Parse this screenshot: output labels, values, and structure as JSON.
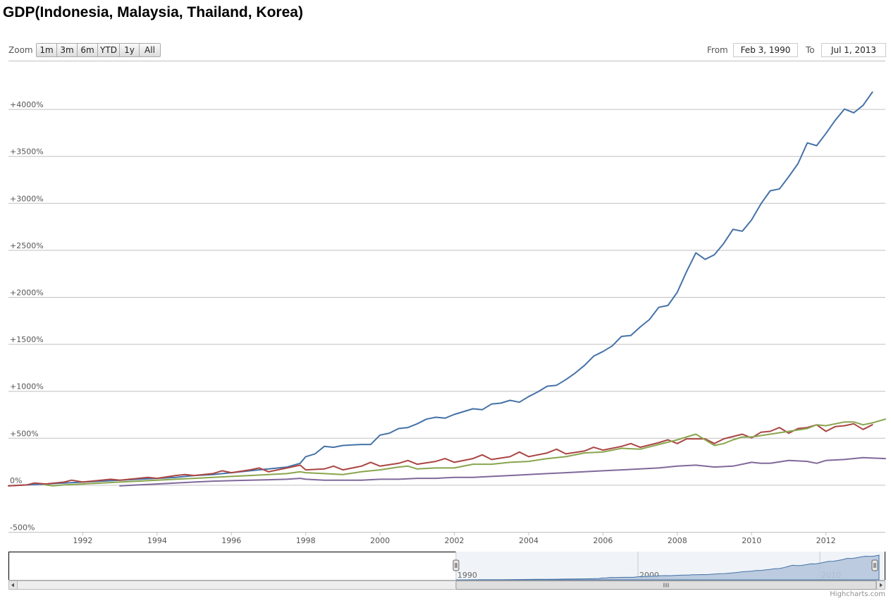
{
  "title": "GDP(Indonesia, Malaysia, Thailand, Korea)",
  "toolbar": {
    "zoom_label": "Zoom",
    "zoom_buttons": [
      "1m",
      "3m",
      "6m",
      "YTD",
      "1y",
      "All"
    ],
    "from_label": "From",
    "from_value": "Feb 3, 1990",
    "to_label": "To",
    "to_value": "Jul 1, 2013"
  },
  "credit": "Highcharts.com",
  "colors": {
    "series1": "#4572A7",
    "series2": "#AA4643",
    "series3": "#89A54E",
    "series4": "#80699B",
    "navigator_fill": "#B6C6DB",
    "grid": "#C0C0C0"
  },
  "chart_data": {
    "type": "line",
    "xlim": [
      1990.0,
      2013.6
    ],
    "ylim": [
      -500,
      4500
    ],
    "y_ticks": [
      -500,
      0,
      500,
      1000,
      1500,
      2000,
      2500,
      3000,
      3500,
      4000
    ],
    "y_tick_labels": [
      "-500%",
      "0%",
      "+500%",
      "+1000%",
      "+1500%",
      "+2000%",
      "+2500%",
      "+3000%",
      "+3500%",
      "+4000%"
    ],
    "x_ticks": [
      1992,
      1994,
      1996,
      1998,
      2000,
      2002,
      2004,
      2006,
      2008,
      2010,
      2012
    ],
    "x_tick_labels": [
      "1992",
      "1994",
      "1996",
      "1998",
      "2000",
      "2002",
      "2004",
      "2006",
      "2008",
      "2010",
      "2012"
    ],
    "grid": true,
    "navigator": {
      "x_ticks": [
        1990,
        2000,
        2010
      ],
      "x_tick_labels": [
        "1990",
        "2000",
        "2010"
      ]
    },
    "series": [
      {
        "points": [
          [
            1990.0,
            -10
          ],
          [
            1990.5,
            0
          ],
          [
            1991.0,
            10
          ],
          [
            1991.5,
            20
          ],
          [
            1992.0,
            30
          ],
          [
            1992.5,
            40
          ],
          [
            1993.0,
            50
          ],
          [
            1993.5,
            60
          ],
          [
            1994.0,
            70
          ],
          [
            1994.5,
            80
          ],
          [
            1995.0,
            100
          ],
          [
            1995.5,
            110
          ],
          [
            1996.0,
            130
          ],
          [
            1996.5,
            150
          ],
          [
            1997.0,
            170
          ],
          [
            1997.5,
            190
          ],
          [
            1997.85,
            230
          ],
          [
            1998.0,
            300
          ],
          [
            1998.25,
            330
          ],
          [
            1998.5,
            410
          ],
          [
            1998.75,
            400
          ],
          [
            1999.0,
            420
          ],
          [
            1999.5,
            430
          ],
          [
            1999.75,
            430
          ],
          [
            2000.0,
            530
          ],
          [
            2000.25,
            550
          ],
          [
            2000.5,
            600
          ],
          [
            2000.75,
            610
          ],
          [
            2001.0,
            650
          ],
          [
            2001.25,
            700
          ],
          [
            2001.5,
            720
          ],
          [
            2001.75,
            710
          ],
          [
            2002.0,
            750
          ],
          [
            2002.5,
            810
          ],
          [
            2002.75,
            800
          ],
          [
            2003.0,
            860
          ],
          [
            2003.25,
            870
          ],
          [
            2003.5,
            900
          ],
          [
            2003.75,
            880
          ],
          [
            2004.0,
            940
          ],
          [
            2004.25,
            990
          ],
          [
            2004.5,
            1050
          ],
          [
            2004.75,
            1060
          ],
          [
            2005.0,
            1120
          ],
          [
            2005.25,
            1190
          ],
          [
            2005.5,
            1270
          ],
          [
            2005.75,
            1370
          ],
          [
            2006.0,
            1420
          ],
          [
            2006.25,
            1480
          ],
          [
            2006.5,
            1580
          ],
          [
            2006.75,
            1590
          ],
          [
            2007.0,
            1680
          ],
          [
            2007.25,
            1760
          ],
          [
            2007.5,
            1890
          ],
          [
            2007.75,
            1910
          ],
          [
            2008.0,
            2050
          ],
          [
            2008.25,
            2270
          ],
          [
            2008.5,
            2470
          ],
          [
            2008.75,
            2400
          ],
          [
            2009.0,
            2450
          ],
          [
            2009.25,
            2570
          ],
          [
            2009.5,
            2720
          ],
          [
            2009.75,
            2700
          ],
          [
            2010.0,
            2820
          ],
          [
            2010.25,
            2990
          ],
          [
            2010.5,
            3130
          ],
          [
            2010.75,
            3150
          ],
          [
            2011.0,
            3280
          ],
          [
            2011.25,
            3420
          ],
          [
            2011.5,
            3640
          ],
          [
            2011.75,
            3610
          ],
          [
            2012.0,
            3740
          ],
          [
            2012.25,
            3880
          ],
          [
            2012.5,
            4000
          ],
          [
            2012.75,
            3960
          ],
          [
            2013.0,
            4040
          ],
          [
            2013.25,
            4180
          ]
        ]
      },
      {
        "points": [
          [
            1990.0,
            -10
          ],
          [
            1990.5,
            0
          ],
          [
            1990.7,
            20
          ],
          [
            1991.0,
            10
          ],
          [
            1991.5,
            30
          ],
          [
            1991.7,
            50
          ],
          [
            1992.0,
            30
          ],
          [
            1992.5,
            50
          ],
          [
            1992.75,
            60
          ],
          [
            1993.0,
            50
          ],
          [
            1993.5,
            70
          ],
          [
            1993.75,
            80
          ],
          [
            1994.0,
            70
          ],
          [
            1994.5,
            100
          ],
          [
            1994.75,
            110
          ],
          [
            1995.0,
            100
          ],
          [
            1995.5,
            120
          ],
          [
            1995.75,
            150
          ],
          [
            1996.0,
            130
          ],
          [
            1996.5,
            160
          ],
          [
            1996.75,
            180
          ],
          [
            1997.0,
            140
          ],
          [
            1997.5,
            180
          ],
          [
            1997.85,
            210
          ],
          [
            1998.0,
            160
          ],
          [
            1998.5,
            170
          ],
          [
            1998.75,
            200
          ],
          [
            1999.0,
            160
          ],
          [
            1999.5,
            200
          ],
          [
            1999.75,
            240
          ],
          [
            2000.0,
            200
          ],
          [
            2000.5,
            230
          ],
          [
            2000.75,
            260
          ],
          [
            2001.0,
            220
          ],
          [
            2001.5,
            250
          ],
          [
            2001.75,
            280
          ],
          [
            2002.0,
            240
          ],
          [
            2002.5,
            280
          ],
          [
            2002.75,
            320
          ],
          [
            2003.0,
            270
          ],
          [
            2003.5,
            300
          ],
          [
            2003.75,
            350
          ],
          [
            2004.0,
            300
          ],
          [
            2004.5,
            340
          ],
          [
            2004.75,
            380
          ],
          [
            2005.0,
            330
          ],
          [
            2005.5,
            360
          ],
          [
            2005.75,
            400
          ],
          [
            2006.0,
            370
          ],
          [
            2006.5,
            410
          ],
          [
            2006.75,
            440
          ],
          [
            2007.0,
            400
          ],
          [
            2007.5,
            450
          ],
          [
            2007.75,
            480
          ],
          [
            2008.0,
            440
          ],
          [
            2008.25,
            490
          ],
          [
            2008.75,
            490
          ],
          [
            2009.0,
            440
          ],
          [
            2009.25,
            490
          ],
          [
            2009.75,
            540
          ],
          [
            2010.0,
            500
          ],
          [
            2010.25,
            560
          ],
          [
            2010.5,
            570
          ],
          [
            2010.75,
            610
          ],
          [
            2011.0,
            550
          ],
          [
            2011.25,
            600
          ],
          [
            2011.5,
            610
          ],
          [
            2011.75,
            640
          ],
          [
            2012.0,
            570
          ],
          [
            2012.25,
            620
          ],
          [
            2012.5,
            630
          ],
          [
            2012.75,
            650
          ],
          [
            2013.0,
            590
          ],
          [
            2013.25,
            640
          ]
        ]
      },
      {
        "points": [
          [
            1991.0,
            0
          ],
          [
            1991.2,
            -10
          ],
          [
            1991.5,
            0
          ],
          [
            1992.0,
            10
          ],
          [
            1992.5,
            20
          ],
          [
            1993.0,
            30
          ],
          [
            1993.5,
            40
          ],
          [
            1994.0,
            50
          ],
          [
            1994.5,
            60
          ],
          [
            1995.0,
            70
          ],
          [
            1995.5,
            80
          ],
          [
            1996.0,
            90
          ],
          [
            1996.5,
            100
          ],
          [
            1997.0,
            110
          ],
          [
            1997.5,
            120
          ],
          [
            1997.85,
            140
          ],
          [
            1998.0,
            130
          ],
          [
            1998.5,
            120
          ],
          [
            1999.0,
            110
          ],
          [
            1999.5,
            140
          ],
          [
            2000.0,
            160
          ],
          [
            2000.5,
            190
          ],
          [
            2000.75,
            200
          ],
          [
            2001.0,
            170
          ],
          [
            2001.5,
            180
          ],
          [
            2002.0,
            180
          ],
          [
            2002.5,
            220
          ],
          [
            2003.0,
            220
          ],
          [
            2003.5,
            240
          ],
          [
            2004.0,
            250
          ],
          [
            2004.5,
            280
          ],
          [
            2005.0,
            300
          ],
          [
            2005.5,
            340
          ],
          [
            2006.0,
            350
          ],
          [
            2006.5,
            390
          ],
          [
            2007.0,
            380
          ],
          [
            2007.5,
            430
          ],
          [
            2008.0,
            480
          ],
          [
            2008.5,
            540
          ],
          [
            2009.0,
            420
          ],
          [
            2009.25,
            440
          ],
          [
            2009.5,
            480
          ],
          [
            2009.75,
            510
          ],
          [
            2010.0,
            510
          ],
          [
            2010.5,
            540
          ],
          [
            2011.0,
            570
          ],
          [
            2011.5,
            600
          ],
          [
            2011.75,
            640
          ],
          [
            2012.0,
            630
          ],
          [
            2012.5,
            670
          ],
          [
            2012.75,
            670
          ],
          [
            2013.0,
            640
          ],
          [
            2013.25,
            660
          ],
          [
            2013.6,
            700
          ]
        ]
      },
      {
        "points": [
          [
            1993.0,
            -10
          ],
          [
            1993.5,
            0
          ],
          [
            1994.0,
            10
          ],
          [
            1994.5,
            20
          ],
          [
            1995.0,
            30
          ],
          [
            1995.5,
            40
          ],
          [
            1996.0,
            45
          ],
          [
            1996.5,
            50
          ],
          [
            1997.0,
            55
          ],
          [
            1997.5,
            60
          ],
          [
            1997.85,
            70
          ],
          [
            1998.0,
            60
          ],
          [
            1998.5,
            50
          ],
          [
            1999.0,
            50
          ],
          [
            1999.5,
            50
          ],
          [
            2000.0,
            60
          ],
          [
            2000.5,
            60
          ],
          [
            2001.0,
            70
          ],
          [
            2001.5,
            70
          ],
          [
            2002.0,
            80
          ],
          [
            2002.5,
            80
          ],
          [
            2003.0,
            90
          ],
          [
            2003.5,
            100
          ],
          [
            2004.0,
            110
          ],
          [
            2004.5,
            120
          ],
          [
            2005.0,
            130
          ],
          [
            2005.5,
            140
          ],
          [
            2006.0,
            150
          ],
          [
            2006.5,
            160
          ],
          [
            2007.0,
            170
          ],
          [
            2007.5,
            180
          ],
          [
            2008.0,
            200
          ],
          [
            2008.5,
            210
          ],
          [
            2009.0,
            190
          ],
          [
            2009.5,
            200
          ],
          [
            2010.0,
            240
          ],
          [
            2010.25,
            230
          ],
          [
            2010.5,
            230
          ],
          [
            2011.0,
            260
          ],
          [
            2011.5,
            250
          ],
          [
            2011.75,
            230
          ],
          [
            2012.0,
            260
          ],
          [
            2012.5,
            270
          ],
          [
            2013.0,
            290
          ],
          [
            2013.6,
            280
          ]
        ]
      }
    ]
  }
}
